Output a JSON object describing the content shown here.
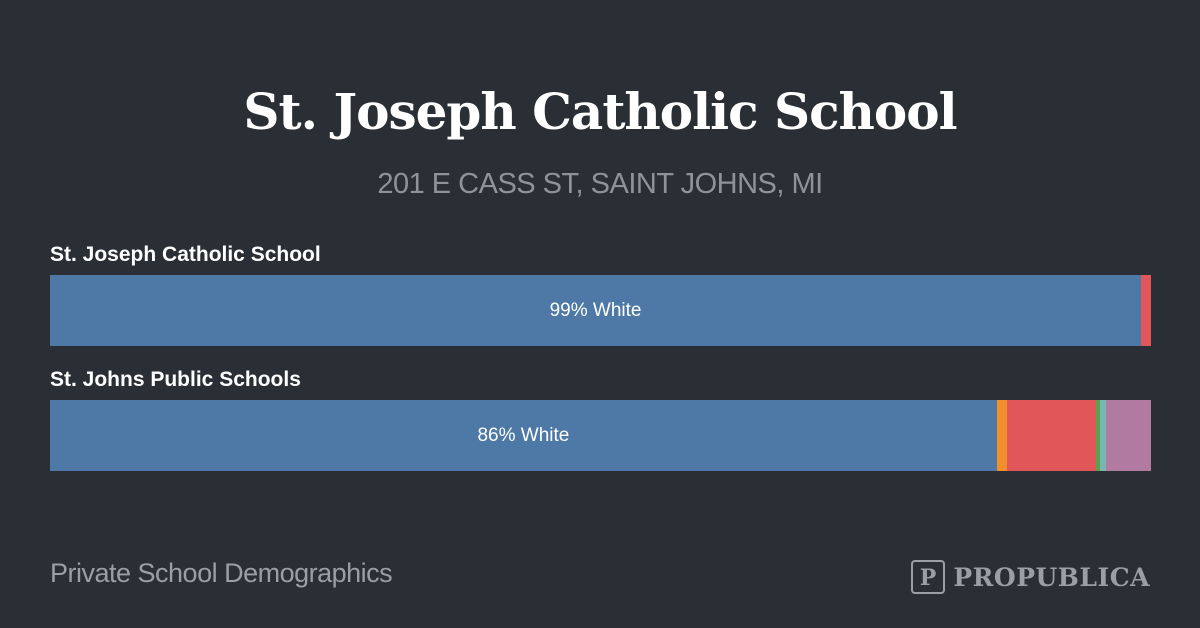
{
  "header": {
    "title": "St. Joseph Catholic School",
    "address": "201 E CASS ST, SAINT JOHNS, MI"
  },
  "footer": {
    "caption": "Private School Demographics",
    "brand": "PROPUBLICA"
  },
  "colors": {
    "background": "#2a2e35",
    "white": "#4e79a7",
    "orange": "#f28e2b",
    "red": "#e15759",
    "green": "#59a14f",
    "teal": "#76b7b2",
    "purple": "#b07aa1"
  },
  "chart_data": {
    "type": "bar",
    "orientation": "horizontal-stacked",
    "xlim": [
      0,
      100
    ],
    "rows": [
      {
        "name": "St. Joseph Catholic School",
        "label": "99% White",
        "segments": [
          {
            "color": "#4e79a7",
            "value": 99.1
          },
          {
            "color": "#e15759",
            "value": 0.9
          }
        ]
      },
      {
        "name": "St. Johns Public Schools",
        "label": "86% White",
        "segments": [
          {
            "color": "#4e79a7",
            "value": 86.0
          },
          {
            "color": "#f28e2b",
            "value": 0.9
          },
          {
            "color": "#e15759",
            "value": 8.1
          },
          {
            "color": "#59a14f",
            "value": 0.4
          },
          {
            "color": "#76b7b2",
            "value": 0.5
          },
          {
            "color": "#b07aa1",
            "value": 4.1
          }
        ]
      }
    ]
  }
}
